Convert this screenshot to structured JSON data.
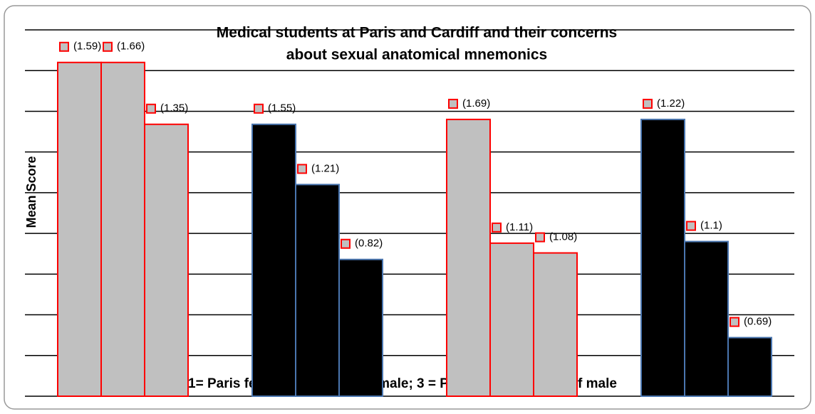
{
  "chart_data": {
    "type": "bar",
    "title_lines": [
      "Medical students at Paris and Cardiff and their concerns",
      "about sexual anatomical mnemonics"
    ],
    "y_label": "Mean Score",
    "footnote": "1= Paris female; 2 = Cardiff female; 3 = Paris male; 4 = Cardiff male",
    "ylim": [
      0,
      2.25
    ],
    "yticks": [
      0,
      0.25,
      0.5,
      0.75,
      1,
      1.25,
      1.5,
      1.75,
      2,
      2.25
    ],
    "grid": true,
    "marker_color": "#ff0000",
    "groups": [
      {
        "fill": "#c0c0c0",
        "stroke": "#ff0000",
        "values": [
          2.05,
          2.05,
          1.67
        ],
        "marker_values": [
          1.59,
          1.66,
          1.35
        ],
        "value_labels": [
          "(1.59)",
          "(1.66)",
          "(1.35)"
        ]
      },
      {
        "fill": "#000000",
        "stroke": "#4a76b0",
        "values": [
          1.67,
          1.3,
          0.84
        ],
        "marker_values": [
          1.55,
          1.21,
          0.82
        ],
        "value_labels": [
          "(1.55)",
          "(1.21)",
          "(0.82)"
        ]
      },
      {
        "fill": "#c0c0c0",
        "stroke": "#ff0000",
        "values": [
          1.7,
          0.94,
          0.88
        ],
        "marker_values": [
          1.69,
          1.11,
          1.08
        ],
        "value_labels": [
          "(1.69)",
          "(1.11)",
          "(1.08)"
        ]
      },
      {
        "fill": "#000000",
        "stroke": "#4a76b0",
        "values": [
          1.7,
          0.95,
          0.36
        ],
        "marker_values": [
          1.22,
          1.1,
          0.69
        ],
        "value_labels": [
          "(1.22)",
          "(1.1)",
          "(0.69)"
        ]
      }
    ]
  }
}
